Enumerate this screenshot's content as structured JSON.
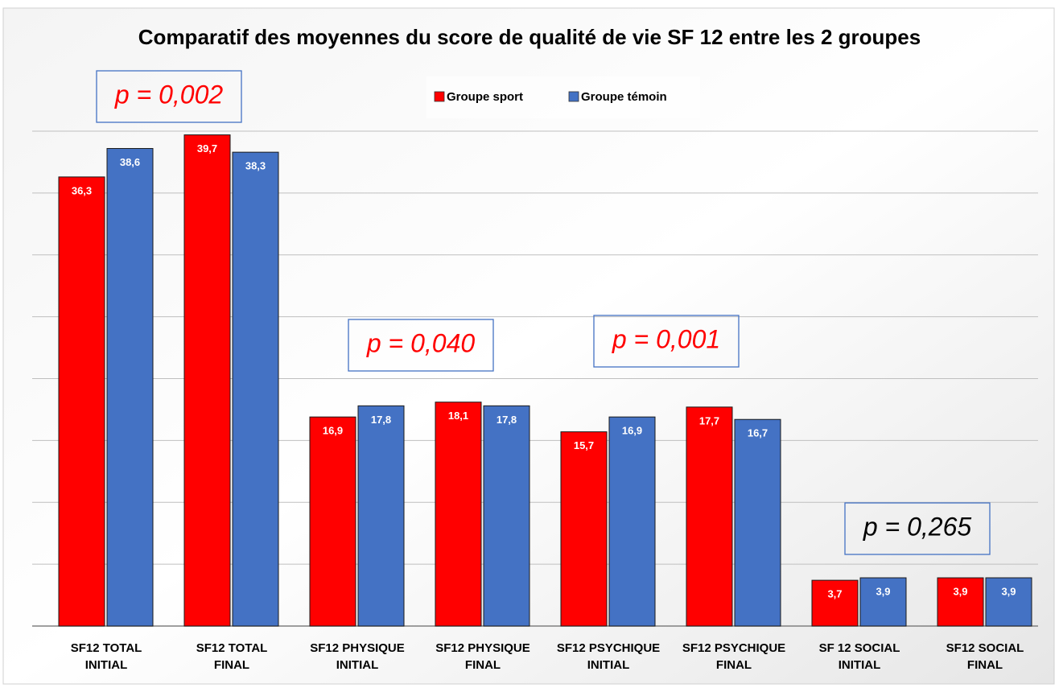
{
  "chart_data": {
    "type": "bar",
    "title": "Comparatif des moyennes du score de qualité de vie SF 12 entre les 2 groupes",
    "categories": [
      "SF12 TOTAL\nINITIAL",
      "SF12 TOTAL\nFINAL",
      "SF12 PHYSIQUE\nINITIAL",
      "SF12 PHYSIQUE\nFINAL",
      "SF12 PSYCHIQUE\nINITIAL",
      "SF12 PSYCHIQUE\nFINAL",
      "SF 12 SOCIAL\nINITIAL",
      "SF12 SOCIAL\nFINAL"
    ],
    "series": [
      {
        "name": "Groupe sport",
        "color": "#ff0000",
        "values": [
          36.3,
          39.7,
          16.9,
          18.1,
          15.7,
          17.7,
          3.7,
          3.9
        ],
        "value_labels": [
          "36,3",
          "39,7",
          "16,9",
          "18,1",
          "15,7",
          "17,7",
          "3,7",
          "3,9"
        ]
      },
      {
        "name": "Groupe témoin",
        "color": "#4472c4",
        "values": [
          38.6,
          38.3,
          17.8,
          17.8,
          16.9,
          16.7,
          3.9,
          3.9
        ],
        "value_labels": [
          "38,6",
          "38,3",
          "17,8",
          "17,8",
          "16,9",
          "16,7",
          "3,9",
          "3,9"
        ]
      }
    ],
    "annotations": [
      "p = 0,002",
      "p = 0,040",
      "p = 0,001",
      "p = 0,265"
    ],
    "ylim": [
      0,
      40
    ],
    "yticks": [
      0,
      5,
      10,
      15,
      20,
      25,
      30,
      35,
      40
    ],
    "grid": true,
    "legend": "top"
  }
}
